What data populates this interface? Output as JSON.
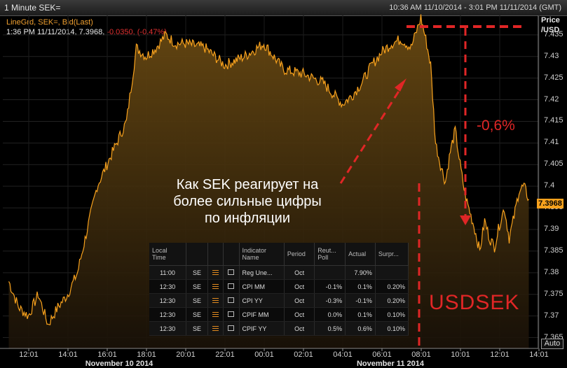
{
  "window": {
    "title": "1 Minute SEK=",
    "range": "10:36 AM 11/10/2014 - 3:01 PM 11/11/2014 (GMT)"
  },
  "legend": {
    "line1": "LineGrd, SEK=, Bid(Last)",
    "line2_time": "1:36 PM 11/11/2014,",
    "line2_value": "7.3968,",
    "line2_change": "-0.0350,",
    "line2_pct": "(-0.47%)"
  },
  "annotations": {
    "caption_line1": "Как SEK реагирует на",
    "caption_line2": "более сильные цифры",
    "caption_line3": "по инфляции",
    "pct_drop": "-0,6%",
    "pair": "USDSEK"
  },
  "colors": {
    "line": "#f7a11d",
    "annotation": "#e02626",
    "background": "#000000"
  },
  "controls": {
    "auto": "Auto"
  },
  "chart_data": {
    "type": "area",
    "ylabel_line1": "Price",
    "ylabel_line2": "/USD",
    "ylim": [
      7.3625,
      7.4395
    ],
    "y_ticks": [
      "7.435",
      "7.43",
      "7.425",
      "7.42",
      "7.415",
      "7.41",
      "7.405",
      "7.4",
      "7.395",
      "7.39",
      "7.385",
      "7.38",
      "7.375",
      "7.37",
      "7.365"
    ],
    "y_tick_values": [
      7.435,
      7.43,
      7.425,
      7.42,
      7.415,
      7.41,
      7.405,
      7.4,
      7.395,
      7.39,
      7.385,
      7.38,
      7.375,
      7.37,
      7.365
    ],
    "x_ticks": [
      "12:01",
      "14:01",
      "16:01",
      "18:01",
      "20:01",
      "22:01",
      "00:01",
      "02:01",
      "04:01",
      "06:01",
      "08:01",
      "10:01",
      "12:01",
      "14:01"
    ],
    "date_labels": [
      "November 10 2014",
      "November 11 2014"
    ],
    "last_price": "7.3968",
    "x": [
      "11:00",
      "11:30",
      "12:00",
      "12:30",
      "13:00",
      "13:30",
      "14:00",
      "14:30",
      "15:00",
      "15:30",
      "16:00",
      "16:30",
      "17:00",
      "17:30",
      "18:00",
      "18:30",
      "19:00",
      "19:30",
      "20:00",
      "21:00",
      "22:00",
      "23:00",
      "00:00",
      "01:00",
      "02:00",
      "03:00",
      "04:00",
      "04:30",
      "05:00",
      "05:30",
      "06:00",
      "06:30",
      "07:00",
      "07:30",
      "08:00",
      "08:15",
      "08:30",
      "08:45",
      "09:00",
      "09:15",
      "09:30",
      "09:45",
      "10:00",
      "10:15",
      "10:30",
      "10:45",
      "11:00",
      "11:15",
      "11:30",
      "11:45",
      "12:00",
      "12:15",
      "12:30",
      "12:45",
      "13:00",
      "13:15",
      "13:30"
    ],
    "values": [
      7.378,
      7.372,
      7.37,
      7.375,
      7.368,
      7.372,
      7.375,
      7.38,
      7.39,
      7.4,
      7.405,
      7.41,
      7.415,
      7.432,
      7.43,
      7.432,
      7.435,
      7.433,
      7.433,
      7.432,
      7.428,
      7.43,
      7.433,
      7.427,
      7.426,
      7.424,
      7.419,
      7.421,
      7.424,
      7.428,
      7.431,
      7.433,
      7.434,
      7.432,
      7.439,
      7.434,
      7.428,
      7.41,
      7.405,
      7.401,
      7.408,
      7.413,
      7.405,
      7.398,
      7.394,
      7.39,
      7.385,
      7.392,
      7.388,
      7.386,
      7.391,
      7.395,
      7.388,
      7.393,
      7.399,
      7.4,
      7.397
    ]
  },
  "calendar": {
    "headers": [
      "Local Time",
      "",
      "",
      "",
      "Indicator Name",
      "Period",
      "Reuters Poll",
      "Actual",
      "Surprise"
    ],
    "header_display": [
      "Local\nTime",
      "",
      "",
      "",
      "Indicator\nName",
      "Period",
      "Reut...\nPoll",
      "Actual",
      "Surpr..."
    ],
    "rows": [
      {
        "time": "11:00",
        "country": "SE",
        "name": "Reg Une...",
        "period": "Oct",
        "poll": "",
        "actual": "7.90%",
        "surprise": ""
      },
      {
        "time": "12:30",
        "country": "SE",
        "name": "CPI MM",
        "period": "Oct",
        "poll": "-0.1%",
        "actual": "0.1%",
        "surprise": "0.20%"
      },
      {
        "time": "12:30",
        "country": "SE",
        "name": "CPI YY",
        "period": "Oct",
        "poll": "-0.3%",
        "actual": "-0.1%",
        "surprise": "0.20%"
      },
      {
        "time": "12:30",
        "country": "SE",
        "name": "CPIF MM",
        "period": "Oct",
        "poll": "0.0%",
        "actual": "0.1%",
        "surprise": "0.10%"
      },
      {
        "time": "12:30",
        "country": "SE",
        "name": "CPIF YY",
        "period": "Oct",
        "poll": "0.5%",
        "actual": "0.6%",
        "surprise": "0.10%"
      }
    ]
  }
}
